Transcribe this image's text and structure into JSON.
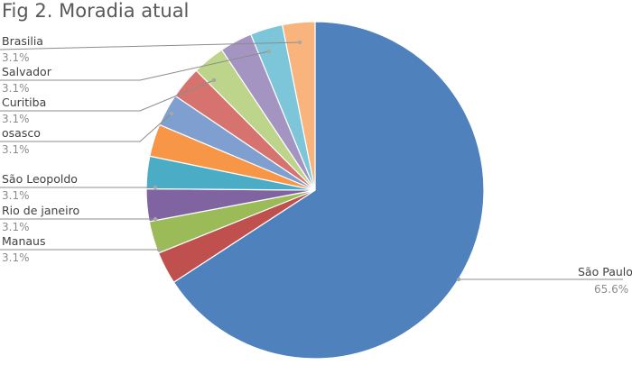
{
  "chart_data": {
    "type": "pie",
    "title": "Fig 2. Moradia atual",
    "slices": [
      {
        "label": "São Paulo",
        "value": 65.6,
        "value_label": "65.6%",
        "color": "#4f81bd"
      },
      {
        "label": "",
        "value": 3.1,
        "value_label": "",
        "color": "#c0504d"
      },
      {
        "label": "Manaus",
        "value": 3.1,
        "value_label": "3.1%",
        "color": "#9bbb59"
      },
      {
        "label": "Rio de janeiro",
        "value": 3.1,
        "value_label": "3.1%",
        "color": "#8064a2"
      },
      {
        "label": "São Leopoldo",
        "value": 3.1,
        "value_label": "3.1%",
        "color": "#4bacc6"
      },
      {
        "label": "",
        "value": 3.1,
        "value_label": "",
        "color": "#f79646"
      },
      {
        "label": "osasco",
        "value": 3.1,
        "value_label": "3.1%",
        "color": "#7f9fd0"
      },
      {
        "label": "Curitiba",
        "value": 3.1,
        "value_label": "3.1%",
        "color": "#d7736e"
      },
      {
        "label": "",
        "value": 3.1,
        "value_label": "",
        "color": "#bcd58a"
      },
      {
        "label": "Salvador",
        "value": 3.1,
        "value_label": "3.1%",
        "color": "#a394c2"
      },
      {
        "label": "Brasilia",
        "value": 3.1,
        "value_label": "3.1%",
        "color": "#7dc5d8"
      },
      {
        "label": "",
        "value": 3.1,
        "value_label": "",
        "color": "#f9b47d"
      }
    ],
    "start_angle": "12 o'clock",
    "direction": "clockwise",
    "legend": "none",
    "data_labels": "outside with leader lines"
  }
}
